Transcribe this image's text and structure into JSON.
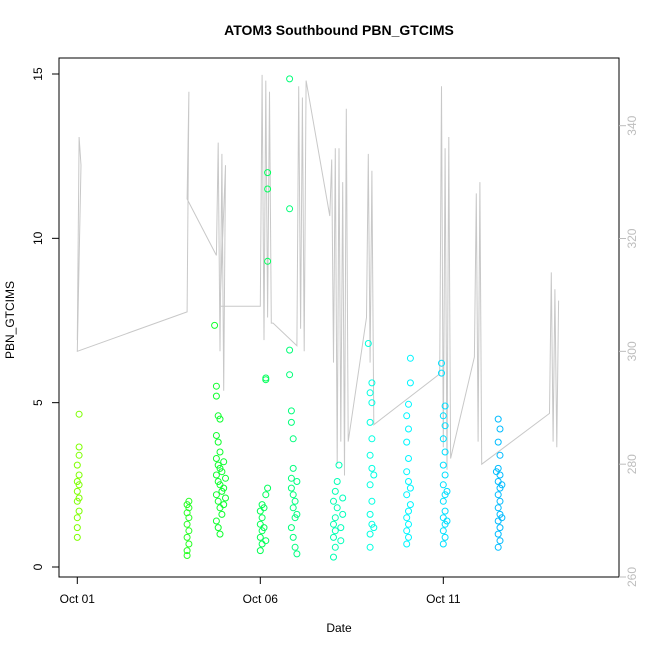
{
  "chart_data": {
    "type": "scatter",
    "title": "ATOM3 Southbound PBN_GTCIMS",
    "xlabel": "Date",
    "ylabel": "PBN_GTCIMS",
    "x_ticks": [
      "Oct 01",
      "Oct 06",
      "Oct 11"
    ],
    "x_ticks_day": [
      1,
      6,
      11
    ],
    "xlim_day": [
      0.5,
      15.8
    ],
    "ylim": [
      0,
      15
    ],
    "y_ticks": [
      0,
      5,
      10,
      15
    ],
    "y2_ticks": [
      260,
      280,
      300,
      320,
      340
    ],
    "y2lim": [
      260,
      352
    ],
    "axis_color_right": "#bdbdbd",
    "line_color": "#c8c8c8",
    "grid": false,
    "legend": "none",
    "color_gradient": [
      "#7fff00",
      "#00ff33",
      "#00ffff",
      "#0099ff"
    ],
    "series": [
      {
        "kind": "points",
        "points": [
          [
            1.0,
            0.9
          ],
          [
            1.0,
            1.2
          ],
          [
            1.0,
            1.5
          ],
          [
            1.05,
            1.7
          ],
          [
            1.0,
            2.0
          ],
          [
            1.05,
            2.1
          ],
          [
            1.0,
            2.3
          ],
          [
            1.05,
            2.5
          ],
          [
            1.0,
            2.6
          ],
          [
            1.05,
            2.8
          ],
          [
            1.0,
            3.1
          ],
          [
            1.05,
            3.4
          ],
          [
            1.05,
            3.65
          ],
          [
            1.05,
            4.65
          ],
          [
            4.0,
            0.35
          ],
          [
            4.0,
            0.5
          ],
          [
            4.05,
            0.7
          ],
          [
            4.0,
            0.9
          ],
          [
            4.05,
            1.1
          ],
          [
            4.0,
            1.3
          ],
          [
            4.05,
            1.5
          ],
          [
            4.0,
            1.65
          ],
          [
            4.05,
            1.8
          ],
          [
            4.0,
            1.9
          ],
          [
            4.05,
            2.0
          ],
          [
            4.75,
            7.35
          ],
          [
            4.8,
            5.5
          ],
          [
            4.8,
            5.2
          ],
          [
            4.85,
            4.6
          ],
          [
            4.9,
            4.5
          ],
          [
            4.8,
            4.0
          ],
          [
            4.85,
            3.8
          ],
          [
            4.9,
            3.5
          ],
          [
            4.8,
            3.3
          ],
          [
            4.85,
            3.1
          ],
          [
            4.9,
            3.0
          ],
          [
            4.8,
            2.8
          ],
          [
            4.85,
            2.6
          ],
          [
            4.9,
            2.5
          ],
          [
            4.95,
            2.3
          ],
          [
            4.8,
            2.2
          ],
          [
            4.85,
            2.0
          ],
          [
            4.9,
            1.8
          ],
          [
            4.95,
            1.6
          ],
          [
            4.8,
            1.4
          ],
          [
            4.85,
            1.2
          ],
          [
            4.9,
            1.0
          ],
          [
            4.95,
            2.9
          ],
          [
            5.0,
            3.2
          ],
          [
            5.0,
            2.4
          ],
          [
            5.0,
            1.9
          ],
          [
            5.05,
            2.7
          ],
          [
            5.05,
            2.1
          ],
          [
            6.0,
            0.5
          ],
          [
            6.05,
            0.7
          ],
          [
            6.0,
            0.9
          ],
          [
            6.05,
            1.1
          ],
          [
            6.0,
            1.3
          ],
          [
            6.05,
            1.5
          ],
          [
            6.0,
            1.7
          ],
          [
            6.05,
            1.9
          ],
          [
            6.1,
            1.2
          ],
          [
            6.1,
            1.8
          ],
          [
            6.15,
            0.8
          ],
          [
            6.15,
            2.2
          ],
          [
            6.2,
            2.4
          ],
          [
            6.15,
            5.75
          ],
          [
            6.15,
            5.7
          ],
          [
            6.2,
            9.3
          ],
          [
            6.2,
            11.5
          ],
          [
            6.2,
            12.0
          ],
          [
            6.8,
            14.85
          ],
          [
            6.8,
            10.9
          ],
          [
            6.8,
            6.6
          ],
          [
            6.8,
            5.85
          ],
          [
            6.85,
            4.75
          ],
          [
            6.85,
            4.4
          ],
          [
            6.9,
            3.9
          ],
          [
            6.9,
            3.0
          ],
          [
            6.85,
            2.7
          ],
          [
            6.85,
            2.4
          ],
          [
            6.9,
            2.2
          ],
          [
            6.95,
            2.0
          ],
          [
            6.9,
            1.8
          ],
          [
            6.95,
            1.5
          ],
          [
            6.85,
            1.2
          ],
          [
            6.9,
            0.9
          ],
          [
            6.95,
            0.6
          ],
          [
            7.0,
            0.4
          ],
          [
            7.0,
            1.6
          ],
          [
            7.0,
            2.6
          ],
          [
            8.0,
            0.3
          ],
          [
            8.05,
            0.6
          ],
          [
            8.0,
            0.9
          ],
          [
            8.05,
            1.1
          ],
          [
            8.0,
            1.3
          ],
          [
            8.05,
            1.5
          ],
          [
            8.1,
            1.8
          ],
          [
            8.0,
            2.0
          ],
          [
            8.05,
            2.3
          ],
          [
            8.1,
            2.6
          ],
          [
            8.15,
            3.1
          ],
          [
            8.2,
            0.8
          ],
          [
            8.2,
            1.2
          ],
          [
            8.25,
            1.6
          ],
          [
            8.25,
            2.1
          ],
          [
            9.0,
            0.6
          ],
          [
            9.0,
            1.0
          ],
          [
            9.05,
            1.3
          ],
          [
            9.0,
            1.6
          ],
          [
            9.05,
            2.0
          ],
          [
            9.0,
            2.5
          ],
          [
            9.05,
            3.0
          ],
          [
            9.0,
            3.4
          ],
          [
            9.05,
            3.9
          ],
          [
            9.0,
            4.4
          ],
          [
            9.05,
            5.0
          ],
          [
            9.0,
            5.3
          ],
          [
            9.05,
            5.6
          ],
          [
            8.95,
            6.8
          ],
          [
            9.1,
            1.2
          ],
          [
            9.1,
            2.8
          ],
          [
            10.0,
            0.7
          ],
          [
            10.05,
            0.9
          ],
          [
            10.0,
            1.1
          ],
          [
            10.05,
            1.3
          ],
          [
            10.0,
            1.5
          ],
          [
            10.05,
            1.7
          ],
          [
            10.1,
            1.9
          ],
          [
            10.0,
            2.2
          ],
          [
            10.05,
            2.6
          ],
          [
            10.0,
            2.9
          ],
          [
            10.05,
            3.3
          ],
          [
            10.0,
            3.8
          ],
          [
            10.05,
            4.2
          ],
          [
            10.0,
            4.6
          ],
          [
            10.05,
            4.95
          ],
          [
            10.1,
            6.35
          ],
          [
            10.1,
            5.6
          ],
          [
            10.1,
            2.4
          ],
          [
            11.0,
            0.7
          ],
          [
            11.05,
            0.9
          ],
          [
            11.0,
            1.1
          ],
          [
            11.05,
            1.3
          ],
          [
            11.0,
            1.5
          ],
          [
            11.05,
            1.7
          ],
          [
            11.0,
            2.0
          ],
          [
            11.05,
            2.2
          ],
          [
            11.0,
            2.5
          ],
          [
            11.05,
            2.8
          ],
          [
            11.0,
            3.1
          ],
          [
            11.05,
            3.5
          ],
          [
            11.0,
            3.9
          ],
          [
            11.05,
            4.3
          ],
          [
            11.0,
            4.6
          ],
          [
            11.05,
            4.9
          ],
          [
            10.95,
            5.9
          ],
          [
            10.95,
            6.2
          ],
          [
            11.1,
            1.4
          ],
          [
            11.1,
            2.3
          ],
          [
            12.5,
            0.6
          ],
          [
            12.55,
            0.8
          ],
          [
            12.5,
            1.0
          ],
          [
            12.55,
            1.2
          ],
          [
            12.5,
            1.4
          ],
          [
            12.55,
            1.6
          ],
          [
            12.5,
            1.8
          ],
          [
            12.55,
            2.0
          ],
          [
            12.5,
            2.2
          ],
          [
            12.55,
            2.4
          ],
          [
            12.5,
            2.6
          ],
          [
            12.55,
            2.8
          ],
          [
            12.5,
            3.0
          ],
          [
            12.55,
            3.4
          ],
          [
            12.5,
            3.8
          ],
          [
            12.55,
            4.2
          ],
          [
            12.5,
            4.5
          ],
          [
            12.45,
            2.9
          ],
          [
            12.6,
            1.5
          ],
          [
            12.6,
            2.5
          ]
        ]
      },
      {
        "kind": "line",
        "axis": "right",
        "points": [
          [
            1.0,
            302
          ],
          [
            1.05,
            338
          ],
          [
            1.1,
            333
          ],
          [
            1.0,
            300
          ],
          [
            4.0,
            307
          ],
          [
            4.05,
            346
          ],
          [
            4.0,
            327
          ],
          [
            4.8,
            317
          ],
          [
            4.85,
            337
          ],
          [
            4.9,
            300
          ],
          [
            4.95,
            335
          ],
          [
            5.0,
            293
          ],
          [
            5.05,
            333
          ],
          [
            4.9,
            308
          ],
          [
            6.0,
            308
          ],
          [
            6.05,
            349
          ],
          [
            6.1,
            302
          ],
          [
            6.15,
            348
          ],
          [
            6.2,
            306
          ],
          [
            6.25,
            346
          ],
          [
            6.3,
            305
          ],
          [
            6.35,
            305
          ],
          [
            7.0,
            301
          ],
          [
            7.05,
            347
          ],
          [
            7.1,
            304
          ],
          [
            7.15,
            345
          ],
          [
            7.2,
            300
          ],
          [
            7.25,
            348
          ],
          [
            7.9,
            324
          ],
          [
            7.95,
            334
          ],
          [
            8.0,
            298
          ],
          [
            8.05,
            336
          ],
          [
            8.1,
            280
          ],
          [
            8.15,
            336
          ],
          [
            8.2,
            284
          ],
          [
            8.25,
            330
          ],
          [
            8.3,
            278
          ],
          [
            8.35,
            343
          ],
          [
            8.4,
            284
          ],
          [
            8.9,
            306
          ],
          [
            8.95,
            335
          ],
          [
            9.0,
            298
          ],
          [
            9.05,
            332
          ],
          [
            9.1,
            287
          ],
          [
            9.1,
            287
          ],
          [
            10.9,
            296
          ],
          [
            10.95,
            347
          ],
          [
            11.0,
            283
          ],
          [
            11.05,
            336
          ],
          [
            11.1,
            279
          ],
          [
            11.15,
            338
          ],
          [
            11.2,
            281
          ],
          [
            11.2,
            281
          ],
          [
            11.85,
            299
          ],
          [
            11.9,
            328
          ],
          [
            11.95,
            284
          ],
          [
            12.0,
            330
          ],
          [
            12.05,
            280
          ],
          [
            12.05,
            280
          ],
          [
            13.9,
            289
          ],
          [
            13.95,
            314
          ],
          [
            14.0,
            284
          ],
          [
            14.05,
            311
          ],
          [
            14.1,
            283
          ],
          [
            14.15,
            309
          ]
        ]
      }
    ]
  }
}
